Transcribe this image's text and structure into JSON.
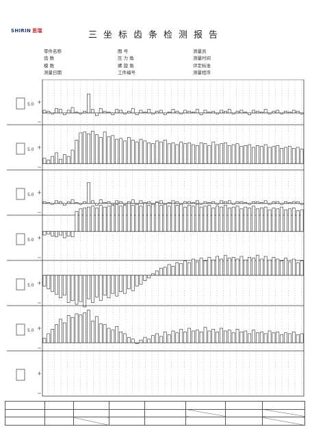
{
  "header": {
    "logo_brand_en": "SHIRIN",
    "logo_brand_cn": "思瑞",
    "title": "三坐标齿条检测报告"
  },
  "info_columns": [
    [
      "零件名称",
      "齿    数",
      "模    数",
      "测量日期"
    ],
    [
      "图    号",
      "压 力 角",
      "螺 旋 角",
      "工件编号"
    ],
    [
      "测量员",
      "测量时间",
      "评定标准",
      "测量程序"
    ]
  ],
  "chart_data": [
    {
      "type": "bar",
      "label": "",
      "range_label": "5.0",
      "zero": 0.74,
      "scale": 5,
      "values": [
        0.3,
        0.2,
        -0.1,
        0.5,
        0.4,
        -0.2,
        0.3,
        0.6,
        0.1,
        -0.1,
        0.2,
        2.1,
        0.4,
        -0.3,
        0.5,
        0.2,
        0.1,
        -0.2,
        0.4,
        0.3,
        -0.1,
        0.2,
        0.5,
        -0.2,
        0.3,
        0.1,
        0.4,
        -0.1,
        0.2,
        0.3,
        -0.2,
        0.1,
        0.4,
        0.2,
        -0.1,
        0.3,
        0.2,
        0.1,
        0.4,
        -0.2,
        0.3,
        0.1,
        0.2,
        -0.1,
        0.3,
        0.2,
        0.4,
        -0.1,
        0.2,
        0.3,
        0.1,
        -0.2,
        0.3,
        0.2,
        0.1,
        0.4,
        -0.1,
        0.2,
        0.3,
        -0.1,
        0.2,
        0.1,
        0.3,
        0.2,
        -0.1
      ]
    },
    {
      "type": "bar",
      "label": "",
      "range_label": "5.0",
      "zero": 0.86,
      "scale": 5,
      "values": [
        0.6,
        0.4,
        0.8,
        1.2,
        0.5,
        1.0,
        0.8,
        1.5,
        2.6,
        3.4,
        3.5,
        3.3,
        3.6,
        3.2,
        2.9,
        3.5,
        3.0,
        3.1,
        2.7,
        2.8,
        2.5,
        2.9,
        2.6,
        2.4,
        2.7,
        2.5,
        2.3,
        2.2,
        2.5,
        2.4,
        2.6,
        2.2,
        2.3,
        2.1,
        2.4,
        2.2,
        2.3,
        2.1,
        2.0,
        2.3,
        2.2,
        2.0,
        2.4,
        2.1,
        2.2,
        2.3,
        2.0,
        2.1,
        2.2,
        1.9,
        2.0,
        2.1,
        1.8,
        2.0,
        1.9,
        2.1,
        1.8,
        1.9,
        2.0,
        1.7,
        1.8,
        1.9,
        1.7,
        1.8,
        1.6
      ]
    },
    {
      "type": "bar",
      "label": "",
      "range_label": "5.0",
      "zero": 0.74,
      "scale": 5,
      "values": [
        0.2,
        0.1,
        -0.1,
        0.3,
        0.2,
        -0.2,
        0.2,
        0.4,
        0.1,
        -0.1,
        0.2,
        2.3,
        0.3,
        -0.2,
        0.4,
        0.1,
        0.2,
        -0.1,
        0.3,
        0.2,
        -0.1,
        0.2,
        0.4,
        -0.1,
        0.3,
        0.1,
        0.2,
        -0.1,
        0.2,
        0.3,
        -0.1,
        0.1,
        0.3,
        0.2,
        -0.1,
        0.2,
        0.2,
        0.1,
        0.3,
        -0.1,
        0.2,
        0.1,
        0.2,
        -0.1,
        0.3,
        0.2,
        0.3,
        -0.1,
        0.2,
        0.2,
        0.1,
        -0.1,
        0.2,
        0.2,
        0.1,
        0.3,
        -0.1,
        0.2,
        0.2,
        -0.1,
        0.2,
        0.1,
        0.2,
        0.2,
        -0.1
      ]
    },
    {
      "type": "bar",
      "label": "",
      "range_label": "5.0",
      "zero": 0.36,
      "scale": 5,
      "values": [
        -0.4,
        -0.3,
        -0.5,
        -0.6,
        -0.4,
        -0.7,
        -0.5,
        -0.6,
        2.2,
        2.5,
        2.6,
        2.7,
        2.8,
        2.6,
        2.9,
        2.7,
        2.8,
        2.9,
        3.0,
        2.8,
        2.9,
        3.1,
        2.9,
        3.0,
        2.8,
        3.1,
        2.9,
        3.0,
        3.2,
        2.9,
        3.0,
        2.8,
        3.1,
        2.9,
        3.0,
        2.7,
        2.9,
        2.8,
        3.0,
        2.7,
        2.8,
        2.9,
        2.6,
        2.8,
        2.7,
        2.9,
        2.6,
        2.7,
        2.8,
        2.5,
        2.7,
        2.6,
        2.8,
        2.5,
        2.6,
        2.7,
        2.4,
        2.6,
        2.5,
        2.7,
        2.4,
        2.5,
        2.6,
        2.3,
        2.4
      ]
    },
    {
      "type": "bar",
      "label": "",
      "range_label": "5.0",
      "zero": 0.33,
      "scale": 5,
      "values": [
        -1.2,
        -1.5,
        -1.8,
        -2.1,
        -2.5,
        -2.2,
        -3.0,
        -2.8,
        -3.2,
        -2.9,
        -3.5,
        -2.6,
        -3.0,
        -2.4,
        -2.8,
        -2.2,
        -2.5,
        -2.0,
        -2.3,
        -1.8,
        -2.0,
        -1.5,
        -1.7,
        -1.2,
        -1.0,
        -0.6,
        -0.3,
        0.2,
        0.5,
        0.8,
        0.9,
        1.2,
        1.0,
        1.4,
        1.3,
        1.6,
        1.4,
        1.8,
        1.5,
        1.9,
        1.6,
        2.0,
        1.7,
        2.1,
        1.8,
        2.2,
        1.9,
        2.0,
        1.8,
        2.1,
        1.7,
        2.0,
        1.9,
        2.2,
        1.8,
        2.1,
        1.7,
        2.0,
        1.8,
        1.6,
        1.9,
        1.5,
        1.8,
        1.4,
        1.6
      ]
    },
    {
      "type": "bar",
      "label": "",
      "range_label": "5.0",
      "zero": 0.82,
      "scale": 5,
      "values": [
        0.5,
        1.0,
        1.5,
        2.0,
        2.6,
        2.2,
        3.0,
        2.8,
        3.2,
        3.1,
        3.3,
        3.6,
        2.4,
        2.9,
        2.1,
        2.0,
        1.6,
        1.4,
        1.8,
        1.2,
        1.0,
        0.6,
        0.4,
        -0.1,
        0.3,
        0.6,
        0.4,
        0.8,
        1.0,
        0.7,
        1.2,
        0.9,
        1.3,
        1.1,
        1.5,
        1.2,
        1.6,
        1.3,
        1.4,
        1.2,
        1.7,
        1.3,
        1.5,
        1.2,
        1.6,
        1.3,
        1.4,
        1.1,
        1.5,
        1.2,
        1.3,
        1.0,
        1.4,
        1.1,
        1.2,
        1.0,
        1.3,
        1.1,
        1.2,
        0.9,
        1.1,
        1.0,
        1.2,
        0.9,
        1.0
      ]
    },
    {
      "type": "bar",
      "label": "",
      "range_label": "",
      "zero": 0.5,
      "scale": 5,
      "values": []
    }
  ],
  "table": {
    "header": [
      "",
      "",
      "",
      "",
      "",
      "",
      "",
      ""
    ],
    "rows": [
      [
        "",
        "",
        "",
        "",
        "",
        "",
        "",
        ""
      ],
      [
        "",
        "",
        "",
        "",
        "",
        "",
        "",
        ""
      ]
    ]
  }
}
